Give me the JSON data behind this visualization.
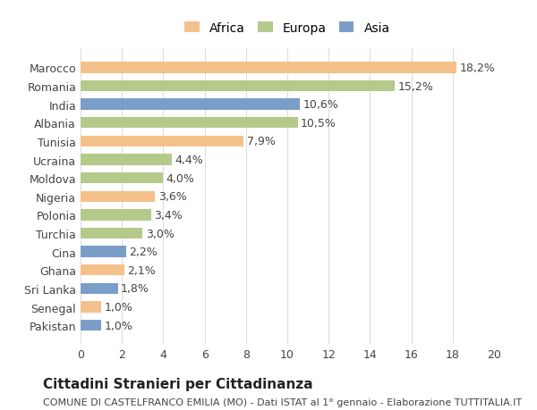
{
  "countries": [
    "Pakistan",
    "Senegal",
    "Sri Lanka",
    "Ghana",
    "Cina",
    "Turchia",
    "Polonia",
    "Nigeria",
    "Moldova",
    "Ucraina",
    "Tunisia",
    "Albania",
    "India",
    "Romania",
    "Marocco"
  ],
  "values": [
    1.0,
    1.0,
    1.8,
    2.1,
    2.2,
    3.0,
    3.4,
    3.6,
    4.0,
    4.4,
    7.9,
    10.5,
    10.6,
    15.2,
    18.2
  ],
  "continents": [
    "Asia",
    "Africa",
    "Asia",
    "Africa",
    "Asia",
    "Europa",
    "Europa",
    "Africa",
    "Europa",
    "Europa",
    "Africa",
    "Europa",
    "Asia",
    "Europa",
    "Africa"
  ],
  "labels": [
    "1,0%",
    "1,0%",
    "1,8%",
    "2,1%",
    "2,2%",
    "3,0%",
    "3,4%",
    "3,6%",
    "4,0%",
    "4,4%",
    "7,9%",
    "10,5%",
    "10,6%",
    "15,2%",
    "18,2%"
  ],
  "colors": {
    "Africa": "#F5C18A",
    "Europa": "#B5C98A",
    "Asia": "#7B9EC8"
  },
  "xlim": [
    0,
    20
  ],
  "xticks": [
    0,
    2,
    4,
    6,
    8,
    10,
    12,
    14,
    16,
    18,
    20
  ],
  "title": "Cittadini Stranieri per Cittadinanza",
  "subtitle": "COMUNE DI CASTELFRANCO EMILIA (MO) - Dati ISTAT al 1° gennaio - Elaborazione TUTTITALIA.IT",
  "background_color": "#ffffff",
  "grid_color": "#dddddd",
  "bar_height": 0.6,
  "label_fontsize": 9,
  "tick_fontsize": 9,
  "title_fontsize": 11,
  "subtitle_fontsize": 8,
  "legend_order": [
    "Africa",
    "Europa",
    "Asia"
  ]
}
